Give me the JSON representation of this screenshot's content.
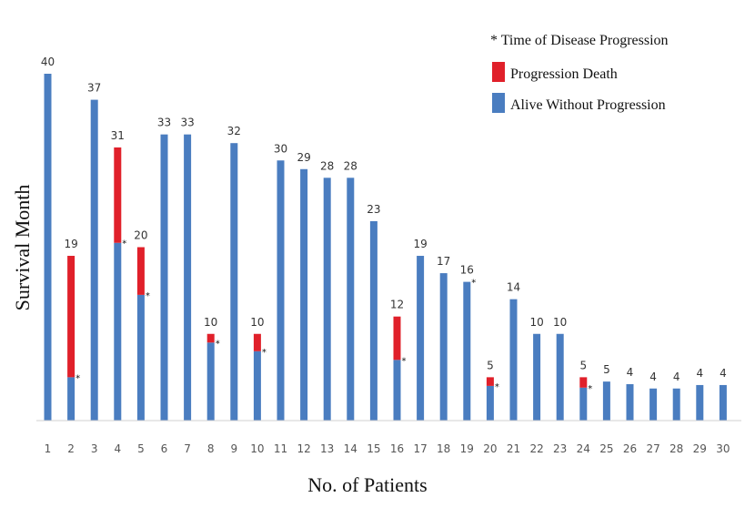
{
  "chart_data": {
    "type": "bar",
    "title": "",
    "xlabel": "No. of Patients",
    "ylabel": "Survival Month",
    "ylim": [
      0,
      40
    ],
    "grid": false,
    "legend_placement": "top-right",
    "legend": {
      "note": "* Time of Disease Progression",
      "items": [
        {
          "label": "Progression Death",
          "color": "#e0202a"
        },
        {
          "label": "Alive Without Progression",
          "color": "#4a7dc0"
        }
      ]
    },
    "colors": {
      "alive": "#4a7dc0",
      "death": "#e0202a"
    },
    "categories": [
      "1",
      "2",
      "3",
      "4",
      "5",
      "6",
      "7",
      "8",
      "9",
      "10",
      "11",
      "12",
      "13",
      "14",
      "15",
      "16",
      "17",
      "18",
      "19",
      "20",
      "21",
      "22",
      "23",
      "24",
      "25",
      "26",
      "27",
      "28",
      "29",
      "30"
    ],
    "value_labels": [
      "40",
      "19",
      "37",
      "31",
      "20",
      "33",
      "33",
      "10",
      "32",
      "10",
      "30",
      "29",
      "28",
      "28",
      "23",
      "12",
      "19",
      "17",
      "16",
      "5",
      "14",
      "10",
      "10",
      "5",
      "5",
      "4",
      "4",
      "4",
      "4",
      "4"
    ],
    "series": [
      {
        "name": "Alive Without Progression",
        "values": [
          40,
          5,
          37,
          20.5,
          14.5,
          33,
          33,
          9,
          32,
          8,
          30,
          29,
          28,
          28,
          23,
          7,
          19,
          17,
          16,
          4,
          14,
          10,
          10,
          3.8,
          4.5,
          4.2,
          3.7,
          3.7,
          4.1,
          4.1
        ]
      },
      {
        "name": "Progression Death",
        "values": [
          0,
          14,
          0,
          11,
          5.5,
          0,
          0,
          1,
          0,
          2,
          0,
          0,
          0,
          0,
          0,
          5,
          0,
          0,
          0,
          1,
          0,
          0,
          0,
          1.2,
          0,
          0,
          0,
          0,
          0,
          0
        ]
      }
    ],
    "progression_markers": [
      2,
      4,
      5,
      8,
      10,
      16,
      19,
      20,
      24
    ],
    "marker_symbol": "*"
  }
}
